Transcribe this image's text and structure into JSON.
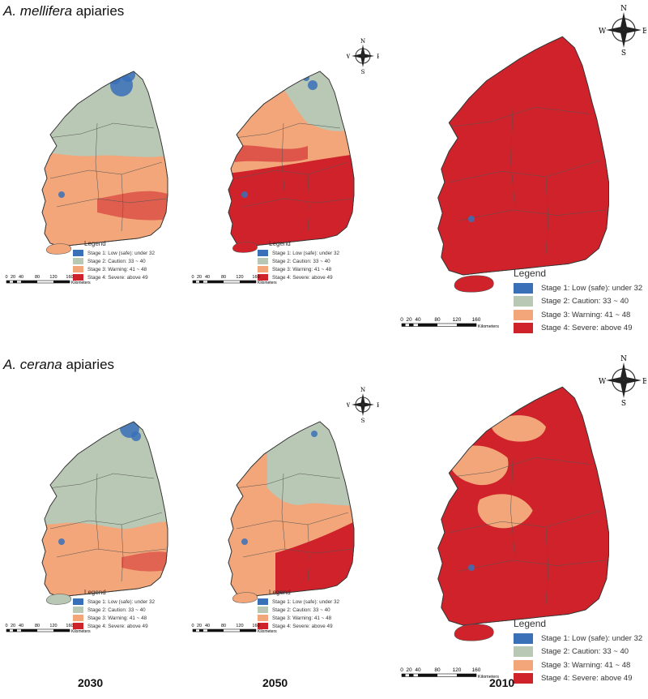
{
  "sections": [
    {
      "species": "A. mellifera",
      "suffix": " apiaries",
      "panels": [
        {
          "year": "2030",
          "mainland": "mixed",
          "island": "warning",
          "blue": [
            [
              150,
              105,
              14
            ],
            [
              158,
              92,
              9
            ],
            [
              142,
              97,
              7
            ],
            [
              76,
              240,
              4
            ]
          ]
        },
        {
          "year": "2050",
          "mainland": "mixed",
          "island": "severe",
          "blue": [
            [
              386,
              105,
              6
            ],
            [
              378,
              96,
              4
            ],
            [
              302,
              240,
              4
            ]
          ]
        },
        {
          "year": "2010",
          "mainland": "severe",
          "island": "severe",
          "blue": [
            [
              582,
              270,
              4
            ]
          ]
        }
      ]
    },
    {
      "species": "A. cerana",
      "suffix": " apiaries",
      "panels": [
        {
          "year": "2030",
          "mainland": "mixed",
          "island": "caution",
          "blue": [
            [
              160,
              528,
              12
            ],
            [
              168,
              538,
              6
            ],
            [
              76,
              668,
              4
            ]
          ]
        },
        {
          "year": "2050",
          "mainland": "mixed",
          "island": "warning",
          "blue": [
            [
              388,
              535,
              4
            ],
            [
              302,
              668,
              4
            ]
          ]
        },
        {
          "year": "2010",
          "mainland": "mixed",
          "island": "severe",
          "blue": [
            [
              582,
              700,
              4
            ]
          ]
        }
      ]
    }
  ],
  "legend": {
    "title": "Legend",
    "items": [
      {
        "label": "Stage 1: Low (safe): under 32",
        "color": "#3a70b8"
      },
      {
        "label": "Stage 2: Caution: 33 ~ 40",
        "color": "#b8c8b4"
      },
      {
        "label": "Stage 3: Warning: 41 ~ 48",
        "color": "#f2a67a"
      },
      {
        "label": "Stage 4: Severe:  above 49",
        "color": "#d0222a"
      }
    ]
  },
  "scale": {
    "ticks": [
      "0",
      "20",
      "40",
      "80",
      "120",
      "160"
    ],
    "unit": "Kilometers"
  },
  "compass": {
    "n": "N",
    "s": "S",
    "e": "E",
    "w": "W"
  },
  "years": [
    "2030",
    "2050",
    "2010"
  ]
}
